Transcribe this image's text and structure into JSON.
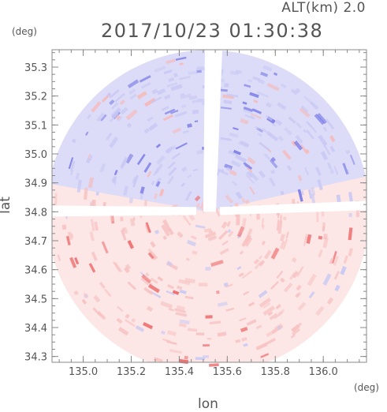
{
  "chart_data": {
    "type": "heatmap",
    "title": "2017/10/23 01:30:38",
    "subtitle": "ALT(km) 2.0",
    "xlabel": "lon",
    "ylabel": "lat",
    "x_unit": "(deg)",
    "y_unit": "(deg)",
    "xlim": [
      134.87,
      136.18
    ],
    "ylim": [
      34.28,
      35.36
    ],
    "x_ticks": [
      135.0,
      135.2,
      135.4,
      135.6,
      135.8,
      136.0
    ],
    "x_tick_labels": [
      "135.0",
      "135.2",
      "135.4",
      "135.6",
      "135.8",
      "136.0"
    ],
    "y_ticks": [
      34.3,
      34.4,
      34.5,
      34.6,
      34.7,
      34.8,
      34.9,
      35.0,
      35.1,
      35.2,
      35.3
    ],
    "y_tick_labels": [
      "34.3",
      "34.4",
      "34.5",
      "34.6",
      "34.7",
      "34.8",
      "34.9",
      "35.0",
      "35.1",
      "35.2",
      "35.3"
    ],
    "radar_center": {
      "lon": 135.52,
      "lat": 34.8
    },
    "colors": {
      "positive": "#f04848",
      "negative": "#5a5af0",
      "frame": "#888888"
    }
  }
}
